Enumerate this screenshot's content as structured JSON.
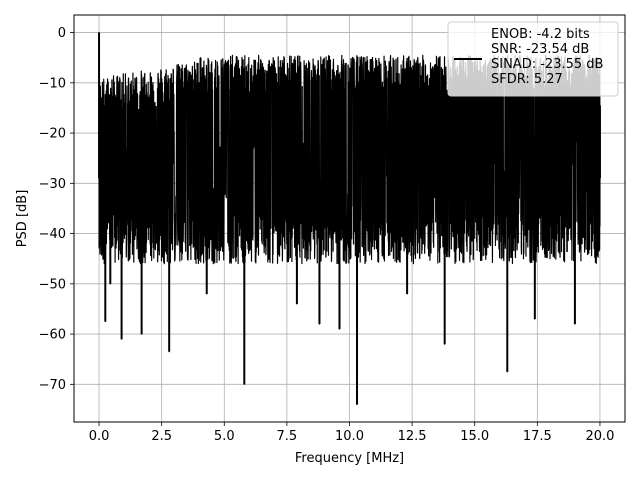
{
  "chart_data": {
    "type": "line",
    "title": "",
    "xlabel": "Frequency [MHz]",
    "ylabel": "PSD [dB]",
    "xlim": [
      -1,
      21.0
    ],
    "ylim": [
      -77.5,
      3.5
    ],
    "xticks": [
      0.0,
      2.5,
      5.0,
      7.5,
      10.0,
      12.5,
      15.0,
      17.5,
      20.0
    ],
    "xtick_labels": [
      "0.0",
      "2.5",
      "5.0",
      "7.5",
      "10.0",
      "12.5",
      "15.0",
      "17.5",
      "20.0"
    ],
    "yticks": [
      0,
      -10,
      -20,
      -30,
      -40,
      -50,
      -60,
      -70
    ],
    "ytick_labels": [
      "0",
      "−10",
      "−20",
      "−30",
      "−40",
      "−50",
      "−60",
      "−70"
    ],
    "grid": true,
    "legend_position": "top-right",
    "series_color": "#000000",
    "series": [
      {
        "name": "ENOB: -4.2 bits\nSNR: -23.54 dB\nSINAD: -23.55 dB\nSFDR: 5.27",
        "noise_floor": {
          "top": -12.5,
          "bottom": -46,
          "center": -29
        },
        "points": [
          {
            "x": 0.0,
            "y": 0.0
          },
          {
            "x": 0.02,
            "y": -11
          },
          {
            "x": 0.05,
            "y": -35
          },
          {
            "x": 0.12,
            "y": -13
          },
          {
            "x": 0.25,
            "y": -57.5
          },
          {
            "x": 0.45,
            "y": -50
          },
          {
            "x": 0.9,
            "y": -61
          },
          {
            "x": 1.7,
            "y": -60
          },
          {
            "x": 2.8,
            "y": -63.5
          },
          {
            "x": 4.05,
            "y": -5
          },
          {
            "x": 4.3,
            "y": -52
          },
          {
            "x": 5.8,
            "y": -70
          },
          {
            "x": 7.9,
            "y": -54
          },
          {
            "x": 8.8,
            "y": -58
          },
          {
            "x": 9.6,
            "y": -59
          },
          {
            "x": 10.3,
            "y": -74
          },
          {
            "x": 12.3,
            "y": -52
          },
          {
            "x": 13.8,
            "y": -62
          },
          {
            "x": 16.3,
            "y": -67.5
          },
          {
            "x": 17.4,
            "y": -57
          },
          {
            "x": 19.0,
            "y": -58
          },
          {
            "x": 20.0,
            "y": -14.5
          }
        ]
      }
    ]
  }
}
